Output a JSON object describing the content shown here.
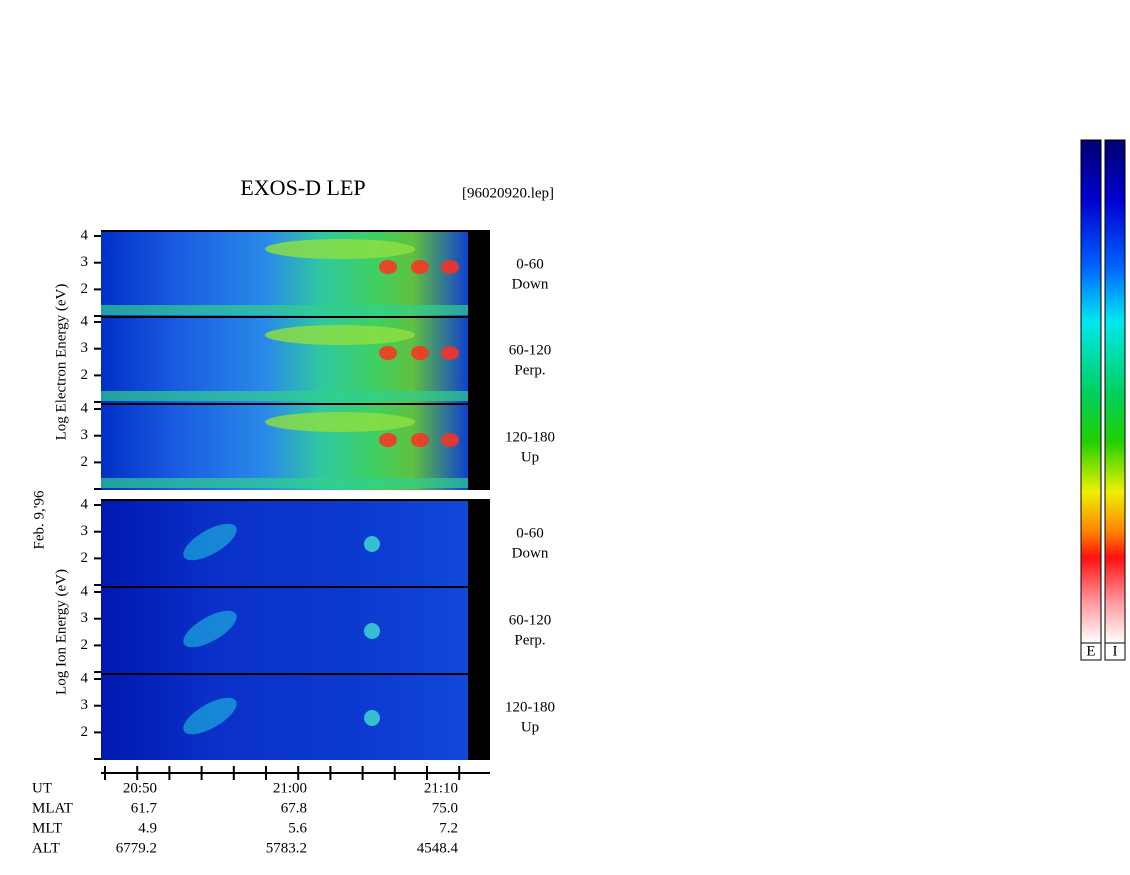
{
  "header": {
    "title": "EXOS-D LEP",
    "file": "[96020920.lep]"
  },
  "axis_labels": {
    "electron": "Log  Electron  Energy (eV)",
    "ion": "Log  Ion  Energy (eV)",
    "date": "Feb. 9,'96"
  },
  "panels": [
    {
      "ticks": [
        4,
        3,
        2
      ],
      "angle": "0-60",
      "direction": "Down"
    },
    {
      "ticks": [
        4,
        3,
        2
      ],
      "angle": "60-120",
      "direction": "Perp."
    },
    {
      "ticks": [
        4,
        3,
        2
      ],
      "angle": "120-180",
      "direction": "Up"
    },
    {
      "ticks": [
        4,
        3,
        2
      ],
      "angle": "0-60",
      "direction": "Down"
    },
    {
      "ticks": [
        4,
        3,
        2
      ],
      "angle": "60-120",
      "direction": "Perp."
    },
    {
      "ticks": [
        4,
        3,
        2
      ],
      "angle": "120-180",
      "direction": "Up"
    }
  ],
  "footer": {
    "rows": [
      {
        "label": "UT",
        "values": [
          "20:50",
          "21:00",
          "21:10"
        ]
      },
      {
        "label": "MLAT",
        "values": [
          "61.7",
          "67.8",
          "75.0"
        ]
      },
      {
        "label": "MLT",
        "values": [
          "4.9",
          "5.6",
          "7.2"
        ]
      },
      {
        "label": "ALT",
        "values": [
          "6779.2",
          "5783.2",
          "4548.4"
        ]
      }
    ]
  },
  "colorbars": [
    "E",
    "I"
  ]
}
